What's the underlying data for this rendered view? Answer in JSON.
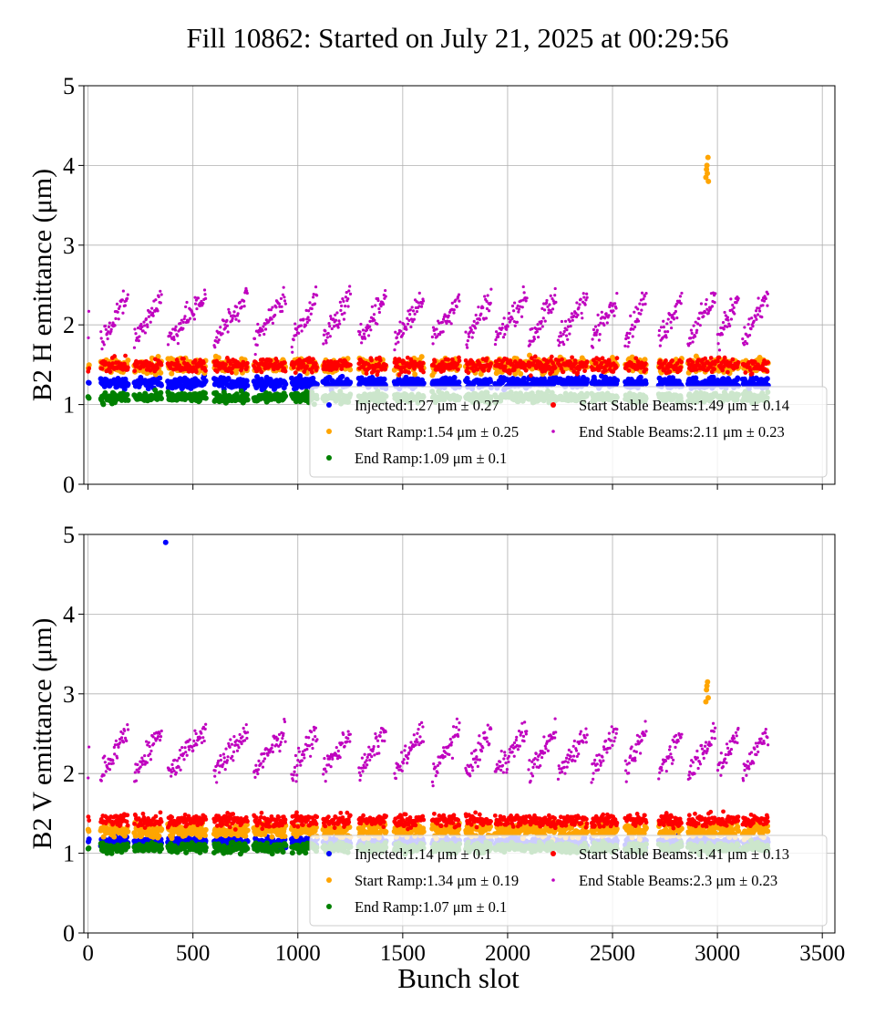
{
  "title": "Fill 10862: Started on July 21, 2025 at 00:29:56",
  "colors": {
    "injected": "#0000ff",
    "start_ramp": "#ffa500",
    "end_ramp": "#008000",
    "start_stable": "#ff0000",
    "end_stable": "#bf00bf"
  },
  "chart_data": [
    {
      "type": "scatter",
      "ylabel": "B2 H emittance (μm)",
      "xlabel": "",
      "xlim": [
        -20,
        3560
      ],
      "ylim": [
        0,
        5
      ],
      "xticks": [
        0,
        500,
        1000,
        1500,
        2000,
        2500,
        3000,
        3500
      ],
      "yticks": [
        "0",
        "1",
        "2",
        "3",
        "4",
        "5"
      ],
      "grid": true,
      "legend_position": "bottom-right",
      "trains": [
        [
          0,
          5
        ],
        [
          60,
          190
        ],
        [
          220,
          350
        ],
        [
          380,
          560
        ],
        [
          600,
          760
        ],
        [
          790,
          940
        ],
        [
          970,
          1090
        ],
        [
          1120,
          1250
        ],
        [
          1290,
          1420
        ],
        [
          1460,
          1600
        ],
        [
          1640,
          1770
        ],
        [
          1800,
          1920
        ],
        [
          1940,
          2090
        ],
        [
          2100,
          2230
        ],
        [
          2240,
          2380
        ],
        [
          2400,
          2520
        ],
        [
          2560,
          2660
        ],
        [
          2720,
          2830
        ],
        [
          2860,
          2990
        ],
        [
          3000,
          3100
        ],
        [
          3120,
          3240
        ]
      ],
      "series": [
        {
          "key": "injected",
          "legend": "Injected:1.27 μm ± 0.27",
          "mean": 1.27,
          "sd": 0.27
        },
        {
          "key": "start_ramp",
          "legend": "Start Ramp:1.54 μm ± 0.25",
          "mean": 1.54,
          "sd": 0.25,
          "outliers": [
            [
              2945,
              3.85
            ],
            [
              2948,
              3.95
            ],
            [
              2950,
              4.0
            ],
            [
              2952,
              3.9
            ],
            [
              2955,
              4.1
            ],
            [
              2957,
              3.8
            ]
          ]
        },
        {
          "key": "end_ramp",
          "legend": "End Ramp:1.09 μm ± 0.1",
          "mean": 1.09,
          "sd": 0.1
        },
        {
          "key": "start_stable",
          "legend": "Start Stable Beams:1.49 μm ± 0.14",
          "mean": 1.49,
          "sd": 0.14
        },
        {
          "key": "end_stable",
          "legend": "End Stable Beams:2.11 μm ± 0.23",
          "mean": 2.11,
          "sd": 0.23
        }
      ]
    },
    {
      "type": "scatter",
      "ylabel": "B2 V emittance (μm)",
      "xlabel": "Bunch slot",
      "xlim": [
        -20,
        3560
      ],
      "ylim": [
        0,
        5
      ],
      "xticks": [
        0,
        500,
        1000,
        1500,
        2000,
        2500,
        3000,
        3500
      ],
      "xticklabels": [
        "0",
        "500",
        "1000",
        "1500",
        "2000",
        "2500",
        "3000",
        "3500"
      ],
      "yticks": [
        "0",
        "1",
        "2",
        "3",
        "4",
        "5"
      ],
      "grid": true,
      "legend_position": "bottom-right",
      "trains": [
        [
          0,
          5
        ],
        [
          60,
          190
        ],
        [
          220,
          350
        ],
        [
          380,
          560
        ],
        [
          600,
          760
        ],
        [
          790,
          940
        ],
        [
          970,
          1090
        ],
        [
          1120,
          1250
        ],
        [
          1290,
          1420
        ],
        [
          1460,
          1600
        ],
        [
          1640,
          1770
        ],
        [
          1800,
          1920
        ],
        [
          1940,
          2090
        ],
        [
          2100,
          2230
        ],
        [
          2240,
          2380
        ],
        [
          2400,
          2520
        ],
        [
          2560,
          2660
        ],
        [
          2720,
          2830
        ],
        [
          2860,
          2990
        ],
        [
          3000,
          3100
        ],
        [
          3120,
          3240
        ]
      ],
      "series": [
        {
          "key": "injected",
          "legend": "Injected:1.14 μm ± 0.1",
          "mean": 1.14,
          "sd": 0.1,
          "outliers": [
            [
              370,
              4.9
            ]
          ]
        },
        {
          "key": "start_ramp",
          "legend": "Start Ramp:1.34 μm ± 0.19",
          "mean": 1.34,
          "sd": 0.19,
          "outliers": [
            [
              2945,
              2.9
            ],
            [
              2948,
              3.05
            ],
            [
              2950,
              3.1
            ],
            [
              2953,
              3.15
            ],
            [
              2956,
              2.95
            ]
          ]
        },
        {
          "key": "end_ramp",
          "legend": "End Ramp:1.07 μm ± 0.1",
          "mean": 1.07,
          "sd": 0.1
        },
        {
          "key": "start_stable",
          "legend": "Start Stable Beams:1.41 μm ± 0.13",
          "mean": 1.41,
          "sd": 0.13
        },
        {
          "key": "end_stable",
          "legend": "End Stable Beams:2.3 μm ± 0.23",
          "mean": 2.3,
          "sd": 0.23
        }
      ]
    }
  ]
}
